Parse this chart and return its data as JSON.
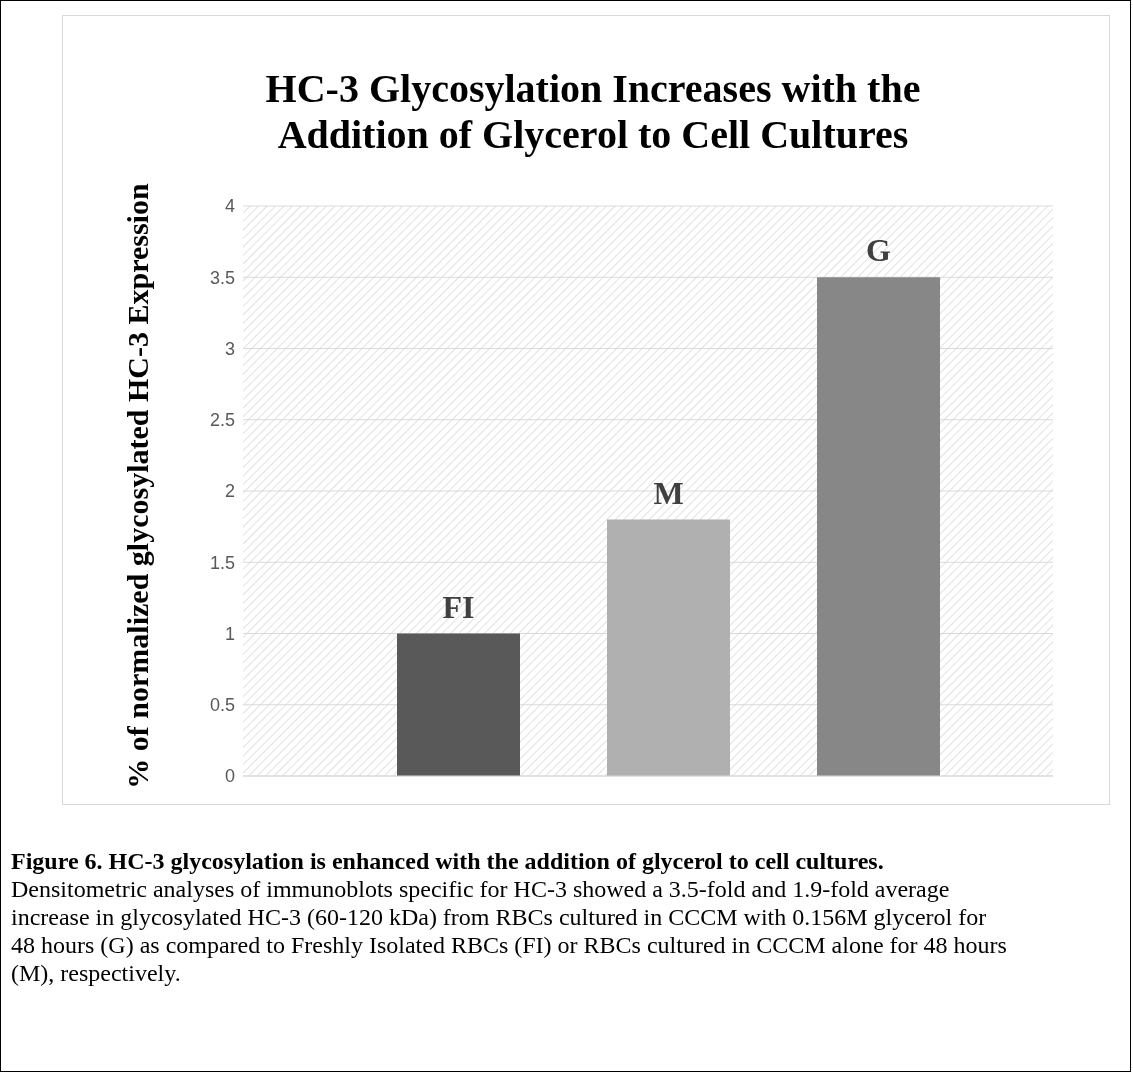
{
  "chart_data": {
    "type": "bar",
    "title": "HC-3 Glycosylation Increases with the Addition of Glycerol to Cell Cultures",
    "ylabel": "% of normalized glycosylated HC-3 Expression",
    "categories": [
      "FI",
      "M",
      "G"
    ],
    "values": [
      1,
      1.8,
      3.5
    ],
    "colors": [
      "#595959",
      "#b0b0b0",
      "#878787"
    ],
    "ylim": [
      0,
      4
    ],
    "yticks": [
      0,
      0.5,
      1,
      1.5,
      2,
      2.5,
      3,
      3.5,
      4
    ],
    "grid": "y",
    "tick_labels": "y",
    "legend": false,
    "annotations": [
      "Figure 6. HC-3 glycosylation is enhanced with the addition of glycerol to cell cultures.",
      "Densitometric analyses of immunoblots specific for HC-3 showed a 3.5-fold and 1.9-fold average increase in glycosylated HC-3 (60-120 kDa) from RBCs cultured in CCCM with 0.156M glycerol for 48 hours (G) as compared to Freshly Isolated RBCs (FI) or RBCs cultured in CCCM alone for 48 hours (M), respectively."
    ]
  }
}
